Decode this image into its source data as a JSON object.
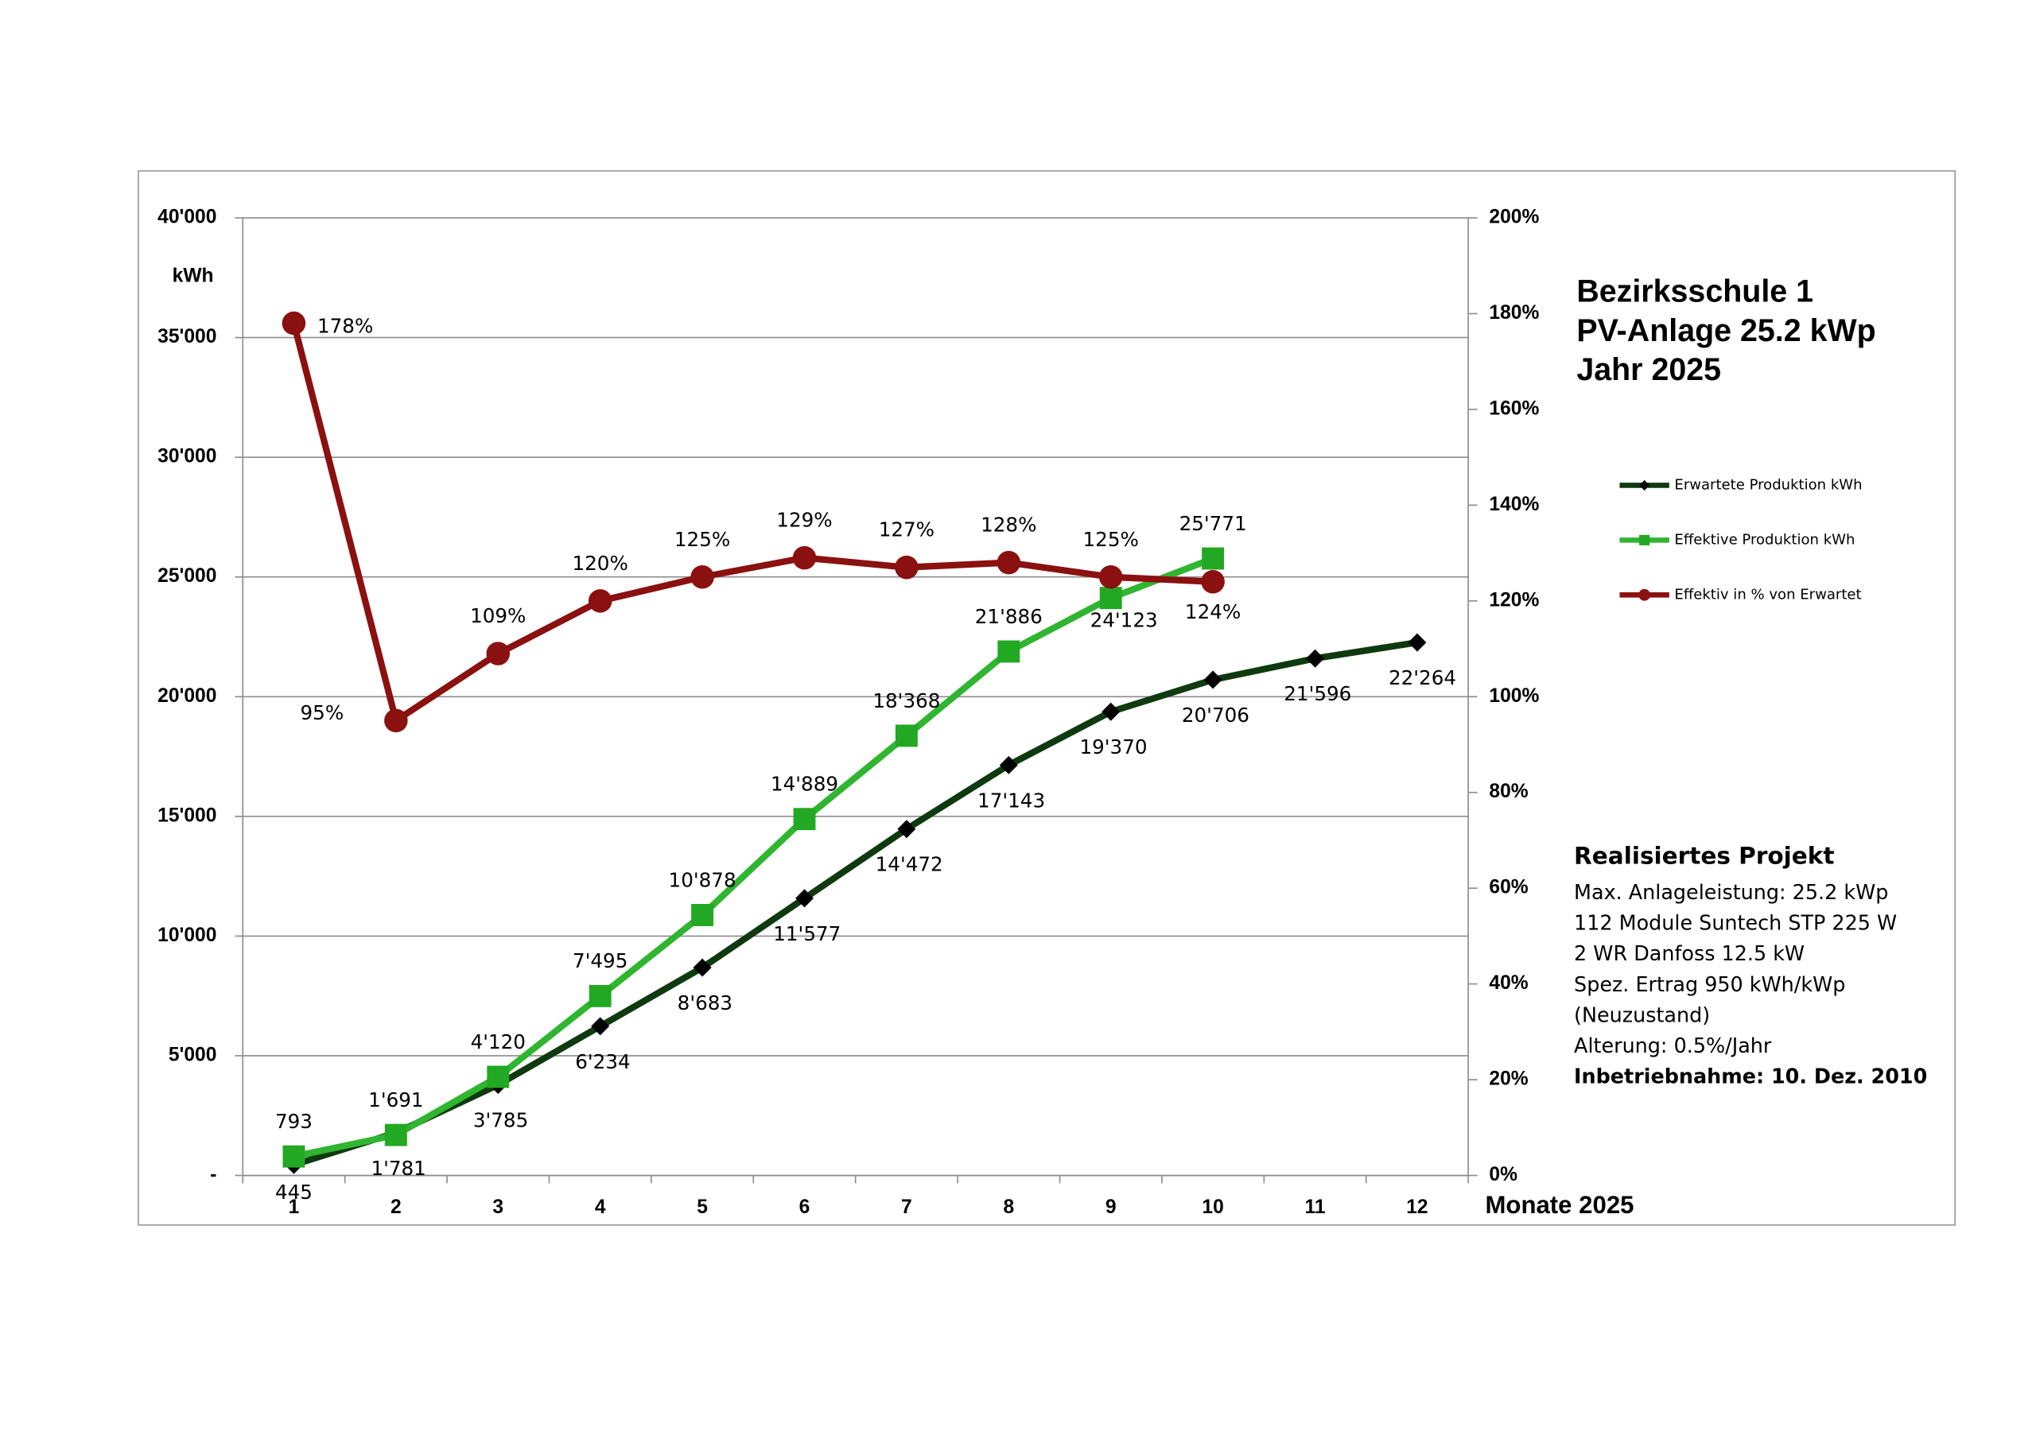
{
  "chart_data": {
    "type": "line",
    "title": [
      "Bezirksschule 1",
      "PV-Anlage 25.2 kWp",
      "Jahr 2025"
    ],
    "y_label": "kWh",
    "x_label": "Monate 2025",
    "categories": [
      "1",
      "2",
      "3",
      "4",
      "5",
      "6",
      "7",
      "8",
      "9",
      "10",
      "11",
      "12"
    ],
    "series": [
      {
        "name": "Erwartete Produktion kWh",
        "color": "#0f3a0f",
        "marker": "diamond",
        "marker_color": "#000000",
        "values": [
          445,
          1781,
          3785,
          6234,
          8683,
          11577,
          14472,
          17143,
          19370,
          20706,
          21596,
          22264
        ],
        "value_labels": [
          "445",
          "1'781",
          "3'785",
          "6'234",
          "8'683",
          "11'577",
          "14'472",
          "17'143",
          "19'370",
          "20'706",
          "21'596",
          "22'264"
        ]
      },
      {
        "name": "Effektive Produktion kWh",
        "color": "#2fb52f",
        "marker": "square",
        "marker_color": "#22a822",
        "values": [
          793,
          1691,
          4120,
          7495,
          10878,
          14889,
          18368,
          21886,
          24123,
          25771,
          null,
          null
        ],
        "value_labels": [
          "793",
          "1'691",
          "4'120",
          "7'495",
          "10'878",
          "14'889",
          "18'368",
          "21'886",
          "24'123",
          "25'771",
          null,
          null
        ]
      },
      {
        "name": "Effektiv in % von Erwartet",
        "color": "#8b1010",
        "marker": "circle",
        "marker_color": "#8b1010",
        "axis": "y2",
        "values": [
          178,
          95,
          109,
          120,
          125,
          129,
          127,
          128,
          125,
          124,
          null,
          null
        ],
        "value_labels": [
          "178%",
          "95%",
          "109%",
          "120%",
          "125%",
          "129%",
          "127%",
          "128%",
          "125%",
          "124%",
          null,
          null
        ]
      }
    ],
    "ylim": [
      0,
      40000
    ],
    "yticks": [
      {
        "value": 0,
        "label": "-"
      },
      {
        "value": 5000,
        "label": "5'000"
      },
      {
        "value": 10000,
        "label": "10'000"
      },
      {
        "value": 15000,
        "label": "15'000"
      },
      {
        "value": 20000,
        "label": "20'000"
      },
      {
        "value": 25000,
        "label": "25'000"
      },
      {
        "value": 30000,
        "label": "30'000"
      },
      {
        "value": 35000,
        "label": "35'000"
      },
      {
        "value": 40000,
        "label": "40'000"
      }
    ],
    "y2lim": [
      0,
      200
    ],
    "y2ticks": [
      {
        "value": 0,
        "label": "0%"
      },
      {
        "value": 20,
        "label": "20%"
      },
      {
        "value": 40,
        "label": "40%"
      },
      {
        "value": 60,
        "label": "60%"
      },
      {
        "value": 80,
        "label": "80%"
      },
      {
        "value": 100,
        "label": "100%"
      },
      {
        "value": 120,
        "label": "120%"
      },
      {
        "value": 140,
        "label": "140%"
      },
      {
        "value": 160,
        "label": "160%"
      },
      {
        "value": 180,
        "label": "180%"
      },
      {
        "value": 200,
        "label": "200%"
      }
    ],
    "grid": true,
    "legend": "right",
    "annotation": {
      "title": "Realisiertes Projekt",
      "lines": [
        "Max. Anlageleistung: 25.2 kWp",
        "112 Module Suntech STP 225 W",
        "2 WR Danfoss 12.5 kW",
        "Spez. Ertrag 950 kWh/kWp",
        "(Neuzustand)",
        "Alterung: 0.5%/Jahr"
      ],
      "footer": "Inbetriebnahme:  10. Dez. 2010"
    }
  }
}
